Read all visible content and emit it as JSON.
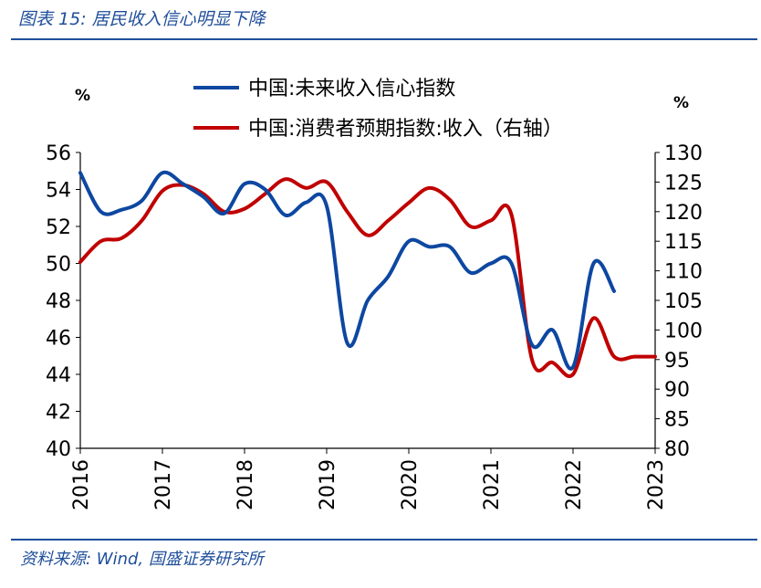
{
  "figure": {
    "title": "图表 15: 居民收入信心明显下降",
    "source": "资料来源: Wind, 国盛证券研究所"
  },
  "colors": {
    "blue": "#0d47a1",
    "red": "#c00000",
    "accent": "#1f4e9a"
  },
  "chart_data": {
    "type": "line",
    "left_axis": {
      "label": "%",
      "ylim": [
        40,
        56
      ],
      "ticks": [
        "40",
        "42",
        "44",
        "46",
        "48",
        "50",
        "52",
        "54",
        "56"
      ]
    },
    "right_axis": {
      "label": "%",
      "ylim": [
        80,
        130
      ],
      "ticks": [
        "80",
        "85",
        "90",
        "95",
        "100",
        "105",
        "110",
        "115",
        "120",
        "125",
        "130"
      ]
    },
    "x_axis": {
      "range": [
        2016,
        2023
      ],
      "ticks": [
        "2016",
        "2017",
        "2018",
        "2019",
        "2020",
        "2021",
        "2022",
        "2023"
      ]
    },
    "grid": false,
    "legend_position": "top",
    "series": [
      {
        "name": "中国:未来收入信心指数",
        "axis": "left",
        "color": "#0d47a1",
        "points": [
          [
            2016.0,
            54.9
          ],
          [
            2016.25,
            52.8
          ],
          [
            2016.5,
            52.9
          ],
          [
            2016.75,
            53.4
          ],
          [
            2017.0,
            54.9
          ],
          [
            2017.25,
            54.3
          ],
          [
            2017.5,
            53.6
          ],
          [
            2017.75,
            52.7
          ],
          [
            2018.0,
            54.3
          ],
          [
            2018.25,
            54.0
          ],
          [
            2018.5,
            52.6
          ],
          [
            2018.75,
            53.3
          ],
          [
            2019.0,
            53.1
          ],
          [
            2019.25,
            45.7
          ],
          [
            2019.5,
            48.0
          ],
          [
            2019.75,
            49.3
          ],
          [
            2020.0,
            51.2
          ],
          [
            2020.25,
            50.9
          ],
          [
            2020.5,
            50.9
          ],
          [
            2020.75,
            49.5
          ],
          [
            2021.0,
            50.0
          ],
          [
            2021.25,
            50.0
          ],
          [
            2021.5,
            45.6
          ],
          [
            2021.75,
            46.4
          ],
          [
            2022.0,
            44.4
          ],
          [
            2022.25,
            50.0
          ],
          [
            2022.5,
            48.5
          ]
        ]
      },
      {
        "name": "中国:消费者预期指数:收入（右轴）",
        "axis": "right",
        "color": "#c00000",
        "points": [
          [
            2016.0,
            111.5
          ],
          [
            2016.25,
            115.0
          ],
          [
            2016.5,
            115.5
          ],
          [
            2016.75,
            118.5
          ],
          [
            2017.0,
            123.5
          ],
          [
            2017.25,
            124.5
          ],
          [
            2017.5,
            123.0
          ],
          [
            2017.75,
            120.0
          ],
          [
            2018.0,
            120.5
          ],
          [
            2018.25,
            123.0
          ],
          [
            2018.5,
            125.5
          ],
          [
            2018.75,
            124.0
          ],
          [
            2019.0,
            125.0
          ],
          [
            2019.25,
            120.0
          ],
          [
            2019.5,
            116.0
          ],
          [
            2019.75,
            118.5
          ],
          [
            2020.0,
            121.5
          ],
          [
            2020.25,
            124.0
          ],
          [
            2020.5,
            122.0
          ],
          [
            2020.75,
            117.5
          ],
          [
            2021.0,
            118.5
          ],
          [
            2021.25,
            119.5
          ],
          [
            2021.5,
            95.0
          ],
          [
            2021.75,
            94.5
          ],
          [
            2022.0,
            92.5
          ],
          [
            2022.25,
            102.0
          ],
          [
            2022.5,
            95.5
          ],
          [
            2022.75,
            95.5
          ],
          [
            2023.0,
            95.5
          ]
        ]
      }
    ]
  }
}
